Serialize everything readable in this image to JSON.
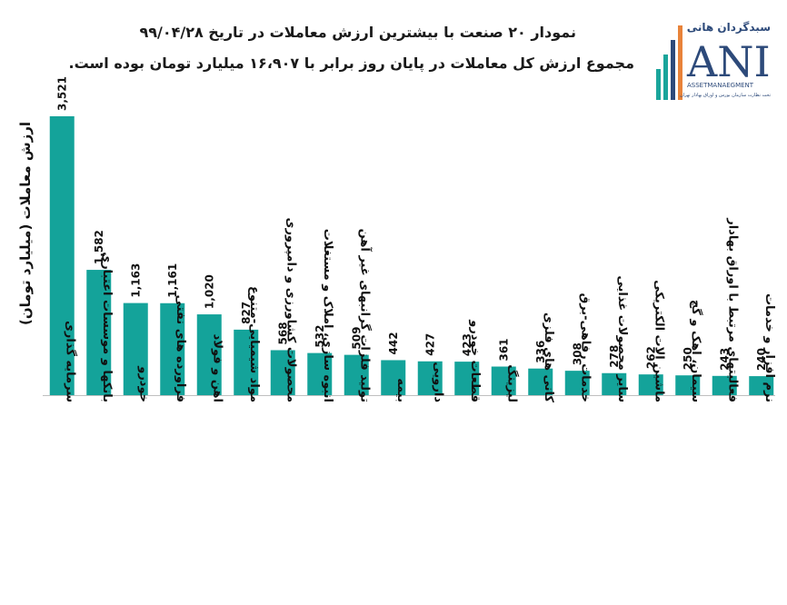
{
  "title_line1": "نمودار ۲۰ صنعت با بیشترین ارزش معاملات در تاریخ ۹۹/۰۴/۲۸",
  "title_line2": "مجموع ارزش کل معاملات در پایان روز برابر با ۱۶،۹۰۷ میلیارد تومان بوده است.",
  "logo": {
    "persian_text": "سبدگردان هانی",
    "letters": "ANI",
    "subtitle": "ASSETMANAEGMENT",
    "tagline": "تحت نظارت سازمان بورس و اوراق بهادار تهران"
  },
  "colors": {
    "bar": "#14a39a",
    "logo_dark": "#2d4a7a",
    "logo_teal": "#1aa59b",
    "logo_orange": "#e8833a"
  },
  "chart_data": {
    "type": "bar",
    "ylabel": "ارزش معاملات (میلیارد تومان)",
    "xlabel": "",
    "categories": [
      "سرمایه گذاری",
      "بانکها و موسسات اعتباری",
      "خودرو",
      "فراورده های نفتی",
      "اهن و فولاد",
      "مواد شیمیایی-متنوع",
      "محصولات کشاورزی و دامپروری",
      "انبوه سازی، املاک و مستغلات",
      "تولید فلزات گرانبهای غیر آهن",
      "بیمه",
      "دارویی",
      "قطعات خودرو",
      "لیزینگ",
      "کانی های فلزی",
      "خدمات رفاهی-برق",
      "سایر محصولات غذایی",
      "ماشین الات الکتریکی",
      "سیمان، اهک و گچ",
      "فعالیتهای مرتبط با اوراق بهادار",
      "نرم افزار و خدمات"
    ],
    "values": [
      3521,
      1582,
      1163,
      1161,
      1020,
      827,
      568,
      532,
      509,
      442,
      427,
      423,
      361,
      336,
      308,
      278,
      262,
      250,
      243,
      240
    ],
    "value_labels": [
      "3,521",
      "1,582",
      "1,163",
      "1,161",
      "1,020",
      "827",
      "568",
      "532",
      "509",
      "442",
      "427",
      "423",
      "361",
      "336",
      "308",
      "278",
      "262",
      "250",
      "243",
      "240"
    ],
    "ylim": [
      0,
      3521
    ],
    "grid": false,
    "legend": "none"
  }
}
